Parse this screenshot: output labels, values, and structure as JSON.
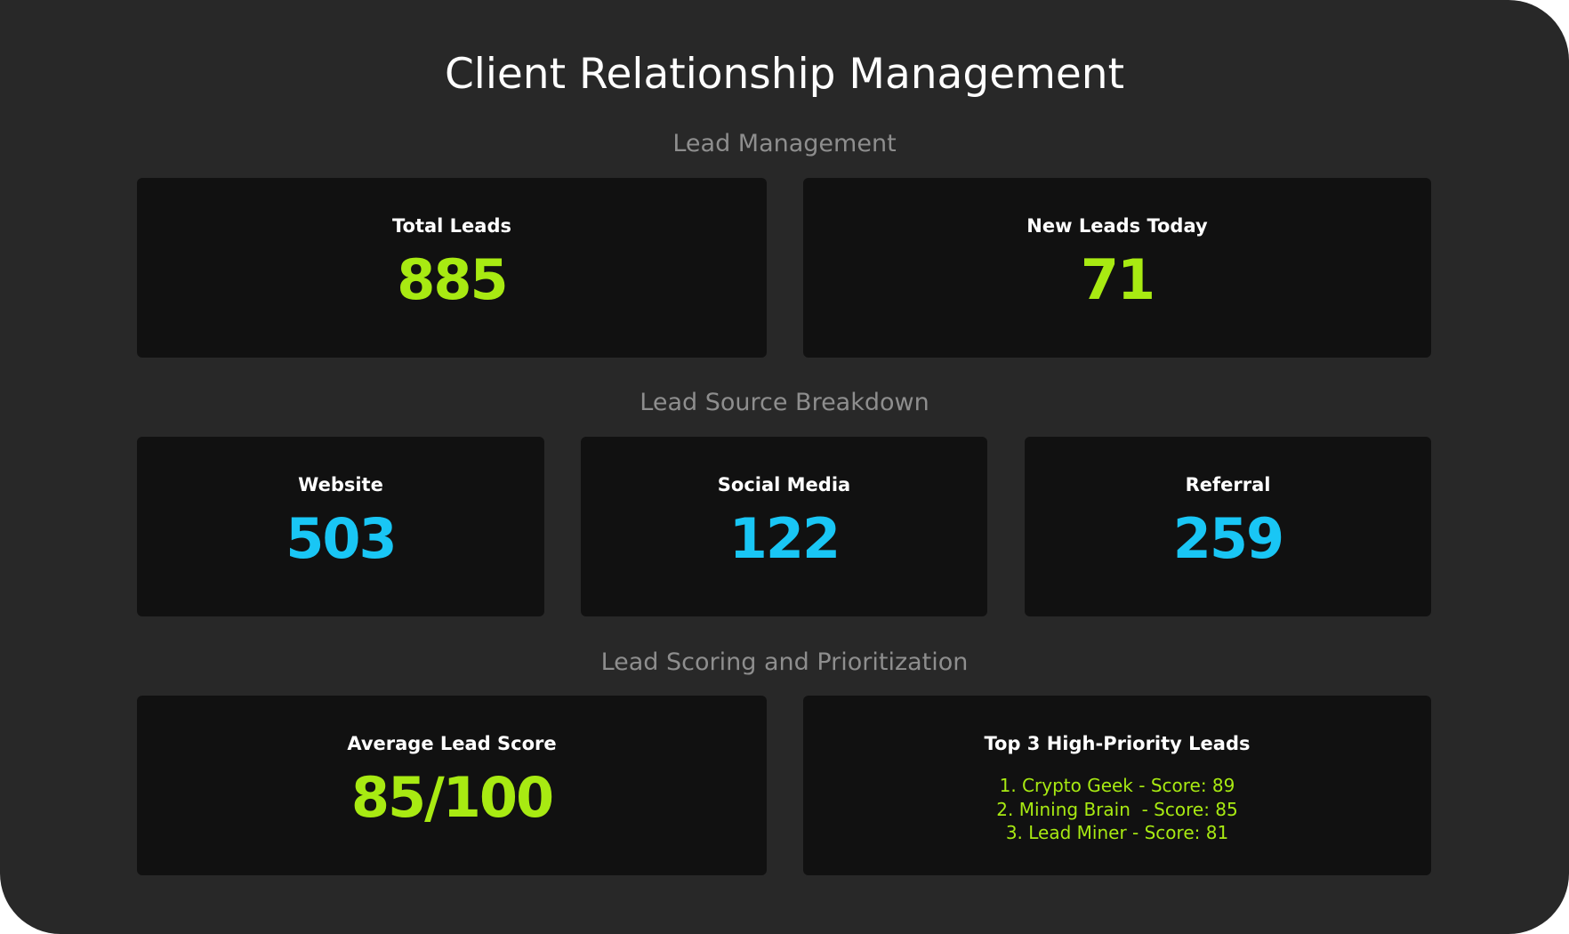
{
  "page": {
    "title": "Client Relationship Management"
  },
  "colors": {
    "background": "#282828",
    "card": "#111111",
    "accent_green": "#a8ea12",
    "accent_cyan": "#19c6f5",
    "section_heading": "#8e8e8e"
  },
  "lead_management": {
    "heading": "Lead Management",
    "total_leads": {
      "label": "Total Leads",
      "value": "885"
    },
    "new_leads_today": {
      "label": "New Leads Today",
      "value": "71"
    }
  },
  "lead_source_breakdown": {
    "heading": "Lead Source Breakdown",
    "sources": [
      {
        "label": "Website",
        "value": "503"
      },
      {
        "label": "Social Media",
        "value": "122"
      },
      {
        "label": "Referral",
        "value": "259"
      }
    ]
  },
  "lead_scoring": {
    "heading": "Lead Scoring and Prioritization",
    "average_score": {
      "label": "Average Lead Score",
      "value": "85/100"
    },
    "top_leads": {
      "label": "Top 3 High-Priority Leads",
      "items": [
        "1. Crypto Geek - Score: 89",
        "2. Mining Brain  - Score: 85",
        "3. Lead Miner - Score: 81"
      ]
    }
  }
}
